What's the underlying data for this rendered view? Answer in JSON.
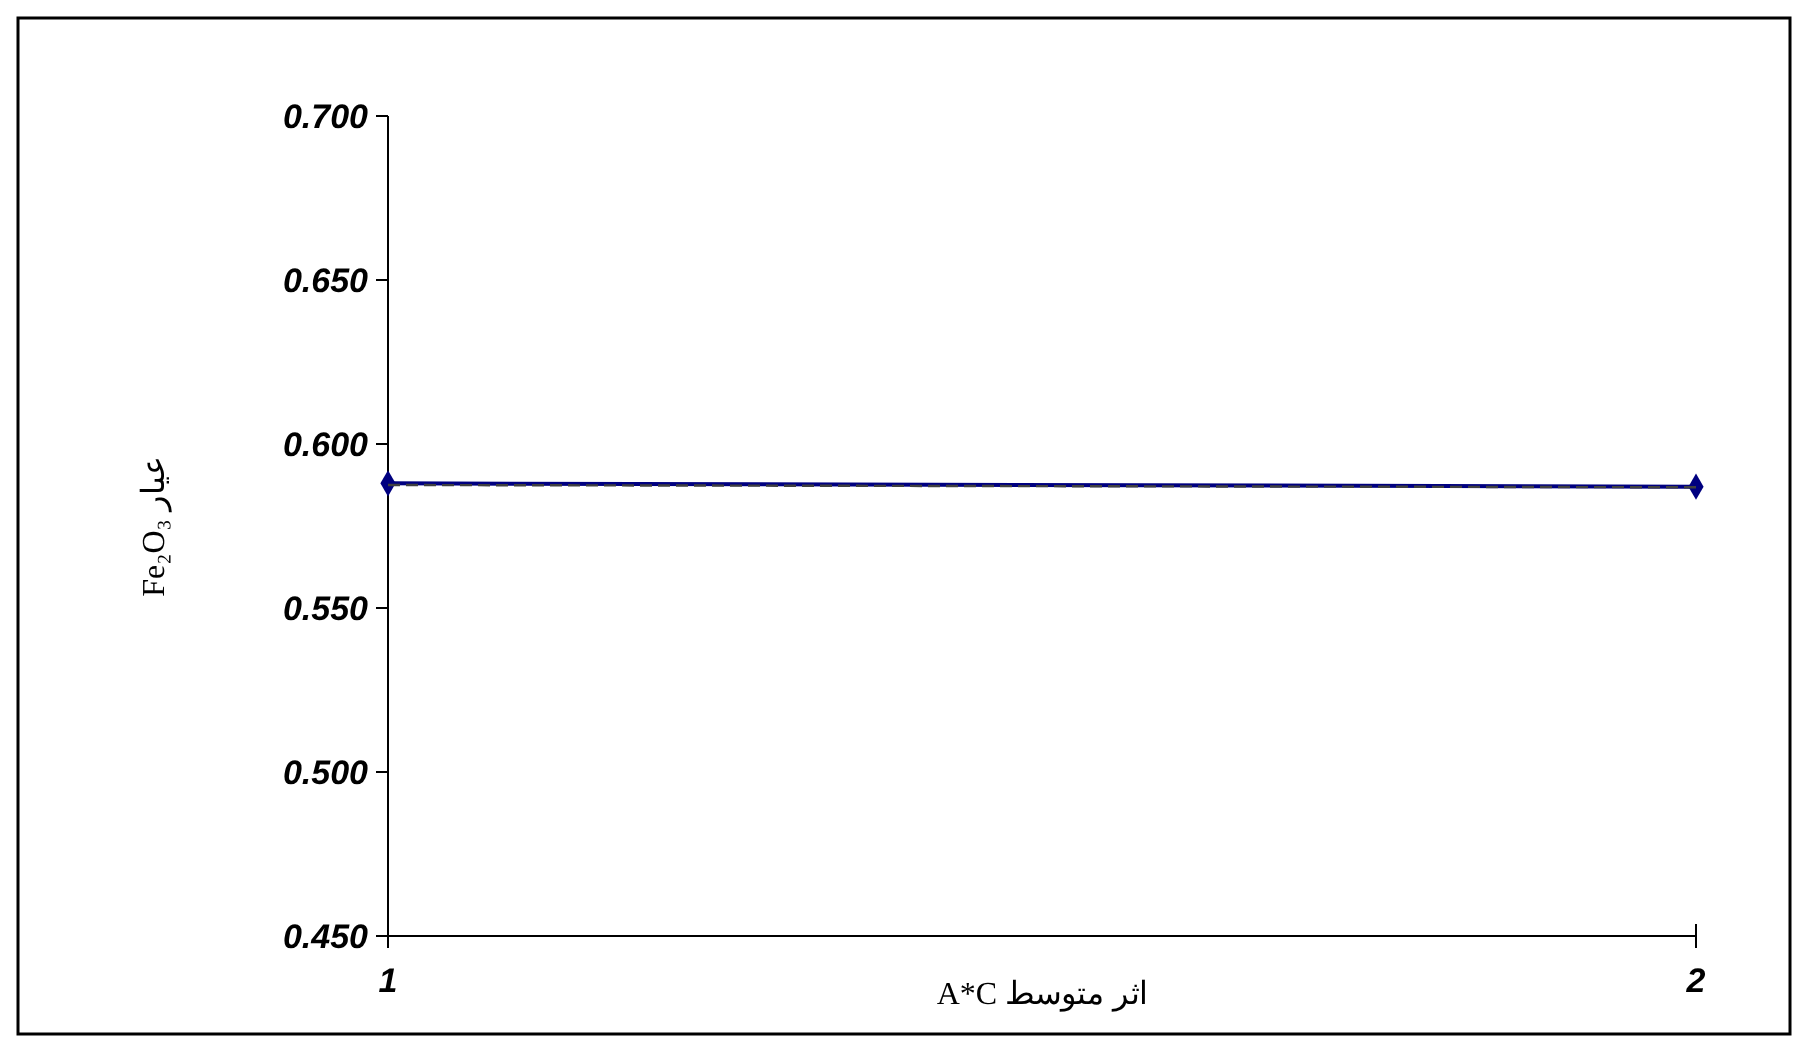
{
  "chart_data": {
    "type": "line",
    "xlabel": "اثر متوسط A*C",
    "ylabel": "عيار Fe₂O₃",
    "x": [
      1,
      2
    ],
    "xlim": [
      1,
      2
    ],
    "xticks": [
      1,
      2
    ],
    "ylim": [
      0.45,
      0.7
    ],
    "yticks": [
      {
        "value": 0.45,
        "label": "0.450"
      },
      {
        "value": 0.5,
        "label": "0.500"
      },
      {
        "value": 0.55,
        "label": "0.550"
      },
      {
        "value": 0.6,
        "label": "0.600"
      },
      {
        "value": 0.65,
        "label": "0.650"
      },
      {
        "value": 0.7,
        "label": "0.700"
      }
    ],
    "grid": false,
    "series": [
      {
        "color": "#000080",
        "values": [
          0.588,
          0.587
        ],
        "marker": "diamond",
        "line_style": "solid"
      },
      {
        "color": "#404040",
        "values": [
          0.5875,
          0.5868
        ],
        "marker": "none",
        "line_style": "dashed"
      }
    ]
  }
}
